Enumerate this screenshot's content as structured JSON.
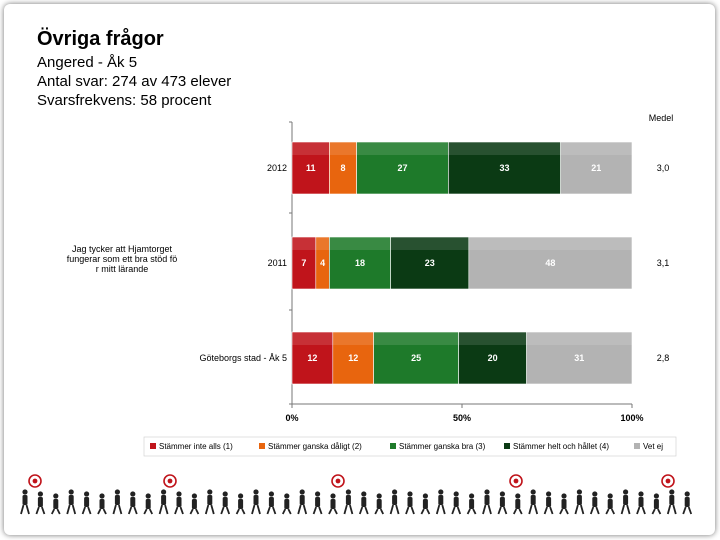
{
  "header": {
    "title": "Övriga frågor",
    "lines": [
      "Angered - Åk 5",
      "Antal svar: 274 av 473 elever",
      "Svarsfrekvens: 58 procent"
    ]
  },
  "chart_data": {
    "type": "bar",
    "orientation": "horizontal-stacked-100",
    "question": "Jag tycker att Hjamtorget fungerar som ett bra stöd för mitt lärande",
    "categories": [
      "2012",
      "2011",
      "Göteborgs stad - Åk 5"
    ],
    "series": [
      {
        "name": "Stämmer inte alls (1)",
        "color": "#c0141b",
        "values": [
          11,
          7,
          12
        ]
      },
      {
        "name": "Stämmer ganska dåligt (2)",
        "color": "#e8650e",
        "values": [
          8,
          4,
          12
        ]
      },
      {
        "name": "Stämmer ganska bra (3)",
        "color": "#1e7a2a",
        "values": [
          27,
          18,
          25
        ]
      },
      {
        "name": "Stämmer helt och hållet (4)",
        "color": "#0b3a14",
        "values": [
          33,
          23,
          20
        ]
      },
      {
        "name": "Vet ej",
        "color": "#b3b3b3",
        "values": [
          21,
          48,
          31
        ]
      }
    ],
    "medel_label": "Medel",
    "medel": [
      "3,0",
      "3,1",
      "2,8"
    ],
    "x_ticks": [
      "0%",
      "50%",
      "100%"
    ],
    "xlim": [
      0,
      100
    ],
    "legend_position": "bottom"
  },
  "colors": {
    "frame_shadow": "#555555",
    "footer_figures": "#222222",
    "footer_target": "#c0141b"
  }
}
